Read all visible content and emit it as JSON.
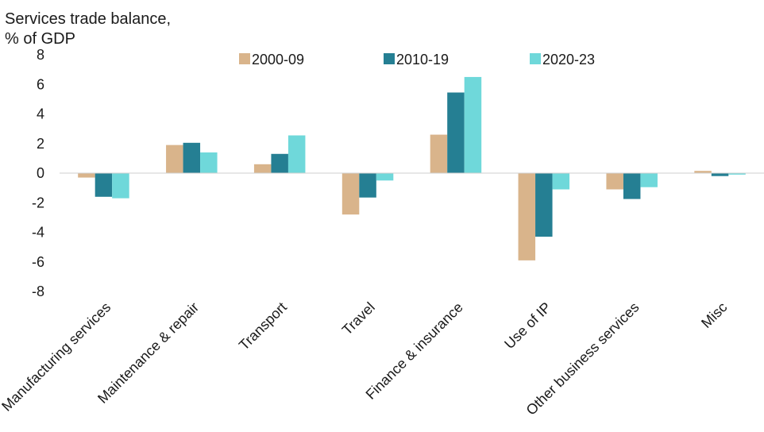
{
  "chart_data": {
    "type": "bar",
    "ylabel_lines": [
      "Services trade balance,",
      "% of GDP"
    ],
    "categories": [
      "Manufacturing services",
      "Maintenance & repair",
      "Transport",
      "Travel",
      "Finance & insurance",
      "Use of IP",
      "Other business services",
      "Misc"
    ],
    "series": [
      {
        "name": "2000-09",
        "color": "#d9b48b",
        "values": [
          -0.3,
          1.9,
          0.6,
          -2.8,
          2.6,
          -5.9,
          -1.1,
          0.15
        ]
      },
      {
        "name": "2010-19",
        "color": "#257f93",
        "values": [
          -1.6,
          2.05,
          1.3,
          -1.65,
          5.45,
          -4.3,
          -1.75,
          -0.2
        ]
      },
      {
        "name": "2020-23",
        "color": "#6fd8da",
        "values": [
          -1.7,
          1.4,
          2.55,
          -0.5,
          6.5,
          -1.1,
          -0.95,
          -0.1
        ]
      }
    ],
    "yticks": [
      "8",
      "6",
      "4",
      "2",
      "0",
      "-2",
      "-4",
      "-6",
      "-8"
    ],
    "ylim": [
      -8,
      8
    ],
    "grid": false,
    "legend_position": "top"
  }
}
